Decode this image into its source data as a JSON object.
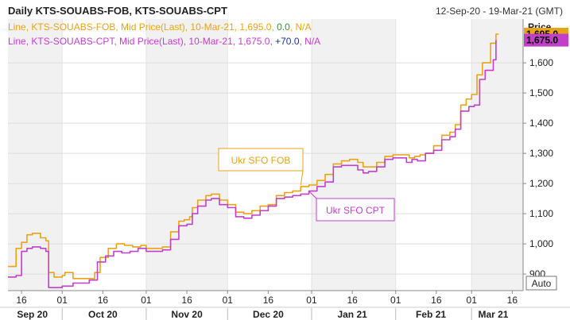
{
  "chart_data": {
    "type": "line",
    "title": "Daily KTS-SOUABS-FOB, KTS-SOUABS-CPT",
    "date_range": "12-Sep-20 - 19-Mar-21 (GMT)",
    "ylabel": "Price",
    "autoscale_label": "Auto",
    "ylim": [
      845,
      1745
    ],
    "xlim": [
      "2020-09-11",
      "2021-03-20"
    ],
    "yticks": [
      900,
      1000,
      1100,
      1200,
      1300,
      1400,
      1500,
      1600
    ],
    "ytick_labels": [
      "900",
      "1,000",
      "1,100",
      "1,200",
      "1,300",
      "1,400",
      "1,500",
      "1,600"
    ],
    "xticks": [
      {
        "date": "2020-09-16",
        "label": "16"
      },
      {
        "date": "2020-10-01",
        "label": "01"
      },
      {
        "date": "2020-10-16",
        "label": "16"
      },
      {
        "date": "2020-11-01",
        "label": "01"
      },
      {
        "date": "2020-11-16",
        "label": "16"
      },
      {
        "date": "2020-12-01",
        "label": "01"
      },
      {
        "date": "2020-12-16",
        "label": "16"
      },
      {
        "date": "2021-01-01",
        "label": "01"
      },
      {
        "date": "2021-01-16",
        "label": "16"
      },
      {
        "date": "2021-02-01",
        "label": "01"
      },
      {
        "date": "2021-02-16",
        "label": "16"
      },
      {
        "date": "2021-03-01",
        "label": "01"
      },
      {
        "date": "2021-03-16",
        "label": "16"
      }
    ],
    "months": [
      {
        "label": "Sep 20",
        "center": "2020-09-20"
      },
      {
        "label": "Oct 20",
        "center": "2020-10-16"
      },
      {
        "label": "Nov 20",
        "center": "2020-11-16"
      },
      {
        "label": "Dec 20",
        "center": "2020-12-16"
      },
      {
        "label": "Jan 21",
        "center": "2021-01-16"
      },
      {
        "label": "Feb 21",
        "center": "2021-02-14"
      },
      {
        "label": "Mar 21",
        "center": "2021-03-09"
      }
    ],
    "month_starts": [
      "2020-10-01",
      "2020-11-01",
      "2020-12-01",
      "2021-01-01",
      "2021-02-01",
      "2021-03-01"
    ],
    "legend": [
      {
        "text": "Line, KTS-SOUABS-FOB, Mid Price(Last), 10-Mar-21, 1,695.0, ",
        "change": "0.0",
        "change_color": "#2e9a2e",
        "extra": ", N/A",
        "color": "#e8a317"
      },
      {
        "text": "Line, KTS-SOUABS-CPT, Mid Price(Last), 10-Mar-21, 1,675.0, ",
        "change": "+70.0",
        "change_color": "#1f2fa8",
        "extra": ", N/A",
        "color": "#c040c8"
      }
    ],
    "series": [
      {
        "name": "KTS-SOUABS-FOB",
        "color": "#e8a317",
        "last_label": "1,695.0",
        "points": [
          [
            "2020-09-11",
            925
          ],
          [
            "2020-09-14",
            985
          ],
          [
            "2020-09-16",
            1005
          ],
          [
            "2020-09-18",
            1030
          ],
          [
            "2020-09-20",
            1035
          ],
          [
            "2020-09-23",
            1020
          ],
          [
            "2020-09-25",
            1010
          ],
          [
            "2020-09-26",
            905
          ],
          [
            "2020-09-28",
            890
          ],
          [
            "2020-10-01",
            895
          ],
          [
            "2020-10-02",
            905
          ],
          [
            "2020-10-05",
            885
          ],
          [
            "2020-10-08",
            885
          ],
          [
            "2020-10-11",
            885
          ],
          [
            "2020-10-13",
            905
          ],
          [
            "2020-10-15",
            955
          ],
          [
            "2020-10-18",
            985
          ],
          [
            "2020-10-21",
            1000
          ],
          [
            "2020-10-24",
            995
          ],
          [
            "2020-10-27",
            990
          ],
          [
            "2020-10-30",
            995
          ],
          [
            "2020-11-01",
            985
          ],
          [
            "2020-11-04",
            985
          ],
          [
            "2020-11-07",
            990
          ],
          [
            "2020-11-10",
            1040
          ],
          [
            "2020-11-13",
            1075
          ],
          [
            "2020-11-15",
            1080
          ],
          [
            "2020-11-17",
            1090
          ],
          [
            "2020-11-18",
            1120
          ],
          [
            "2020-11-20",
            1145
          ],
          [
            "2020-11-23",
            1160
          ],
          [
            "2020-11-25",
            1165
          ],
          [
            "2020-11-28",
            1145
          ],
          [
            "2020-12-01",
            1130
          ],
          [
            "2020-12-04",
            1105
          ],
          [
            "2020-12-07",
            1100
          ],
          [
            "2020-12-10",
            1110
          ],
          [
            "2020-12-13",
            1125
          ],
          [
            "2020-12-16",
            1130
          ],
          [
            "2020-12-19",
            1160
          ],
          [
            "2020-12-22",
            1170
          ],
          [
            "2020-12-25",
            1175
          ],
          [
            "2020-12-28",
            1190
          ],
          [
            "2020-12-31",
            1195
          ],
          [
            "2021-01-03",
            1210
          ],
          [
            "2021-01-06",
            1230
          ],
          [
            "2021-01-09",
            1265
          ],
          [
            "2021-01-12",
            1275
          ],
          [
            "2021-01-15",
            1280
          ],
          [
            "2021-01-18",
            1270
          ],
          [
            "2021-01-20",
            1255
          ],
          [
            "2021-01-22",
            1255
          ],
          [
            "2021-01-25",
            1270
          ],
          [
            "2021-01-28",
            1290
          ],
          [
            "2021-01-31",
            1295
          ],
          [
            "2021-02-03",
            1295
          ],
          [
            "2021-02-06",
            1285
          ],
          [
            "2021-02-08",
            1290
          ],
          [
            "2021-02-10",
            1295
          ],
          [
            "2021-02-12",
            1300
          ],
          [
            "2021-02-15",
            1325
          ],
          [
            "2021-02-18",
            1360
          ],
          [
            "2021-02-21",
            1370
          ],
          [
            "2021-02-23",
            1395
          ],
          [
            "2021-02-25",
            1460
          ],
          [
            "2021-02-27",
            1480
          ],
          [
            "2021-03-01",
            1495
          ],
          [
            "2021-03-03",
            1560
          ],
          [
            "2021-03-05",
            1600
          ],
          [
            "2021-03-08",
            1665
          ],
          [
            "2021-03-10",
            1695
          ],
          [
            "2021-03-11",
            1695
          ]
        ]
      },
      {
        "name": "KTS-SOUABS-CPT",
        "color": "#c040c8",
        "last_label": "1,675.0",
        "points": [
          [
            "2020-09-11",
            890
          ],
          [
            "2020-09-14",
            895
          ],
          [
            "2020-09-16",
            975
          ],
          [
            "2020-09-18",
            985
          ],
          [
            "2020-09-20",
            990
          ],
          [
            "2020-09-23",
            985
          ],
          [
            "2020-09-25",
            975
          ],
          [
            "2020-09-26",
            855
          ],
          [
            "2020-09-28",
            855
          ],
          [
            "2020-10-01",
            860
          ],
          [
            "2020-10-03",
            860
          ],
          [
            "2020-10-05",
            870
          ],
          [
            "2020-10-08",
            870
          ],
          [
            "2020-10-11",
            880
          ],
          [
            "2020-10-14",
            940
          ],
          [
            "2020-10-17",
            960
          ],
          [
            "2020-10-20",
            975
          ],
          [
            "2020-10-23",
            970
          ],
          [
            "2020-10-26",
            975
          ],
          [
            "2020-10-29",
            985
          ],
          [
            "2020-11-01",
            975
          ],
          [
            "2020-11-04",
            975
          ],
          [
            "2020-11-07",
            980
          ],
          [
            "2020-11-10",
            1015
          ],
          [
            "2020-11-13",
            1060
          ],
          [
            "2020-11-16",
            1065
          ],
          [
            "2020-11-18",
            1100
          ],
          [
            "2020-11-20",
            1125
          ],
          [
            "2020-11-23",
            1145
          ],
          [
            "2020-11-25",
            1150
          ],
          [
            "2020-11-28",
            1130
          ],
          [
            "2020-12-01",
            1120
          ],
          [
            "2020-12-04",
            1090
          ],
          [
            "2020-12-07",
            1085
          ],
          [
            "2020-12-10",
            1095
          ],
          [
            "2020-12-13",
            1110
          ],
          [
            "2020-12-16",
            1125
          ],
          [
            "2020-12-19",
            1150
          ],
          [
            "2020-12-22",
            1155
          ],
          [
            "2020-12-25",
            1160
          ],
          [
            "2020-12-28",
            1165
          ],
          [
            "2020-12-31",
            1175
          ],
          [
            "2021-01-03",
            1190
          ],
          [
            "2021-01-06",
            1205
          ],
          [
            "2021-01-09",
            1255
          ],
          [
            "2021-01-12",
            1260
          ],
          [
            "2021-01-15",
            1260
          ],
          [
            "2021-01-18",
            1245
          ],
          [
            "2021-01-20",
            1235
          ],
          [
            "2021-01-22",
            1240
          ],
          [
            "2021-01-25",
            1255
          ],
          [
            "2021-01-28",
            1280
          ],
          [
            "2021-01-31",
            1285
          ],
          [
            "2021-02-03",
            1285
          ],
          [
            "2021-02-05",
            1270
          ],
          [
            "2021-02-07",
            1280
          ],
          [
            "2021-02-09",
            1275
          ],
          [
            "2021-02-12",
            1300
          ],
          [
            "2021-02-15",
            1310
          ],
          [
            "2021-02-18",
            1345
          ],
          [
            "2021-02-21",
            1355
          ],
          [
            "2021-02-23",
            1380
          ],
          [
            "2021-02-25",
            1440
          ],
          [
            "2021-02-28",
            1455
          ],
          [
            "2021-03-02",
            1460
          ],
          [
            "2021-03-04",
            1545
          ],
          [
            "2021-03-06",
            1575
          ],
          [
            "2021-03-09",
            1610
          ],
          [
            "2021-03-10",
            1675
          ]
        ]
      }
    ],
    "annotations": [
      {
        "text": "Ukr SFO FOB",
        "color": "#e8a317",
        "anchor": [
          "2020-12-28",
          1195
        ]
      },
      {
        "text": "Ukr SFO CPT",
        "color": "#c040c8",
        "anchor": [
          "2020-12-31",
          1175
        ]
      }
    ]
  }
}
